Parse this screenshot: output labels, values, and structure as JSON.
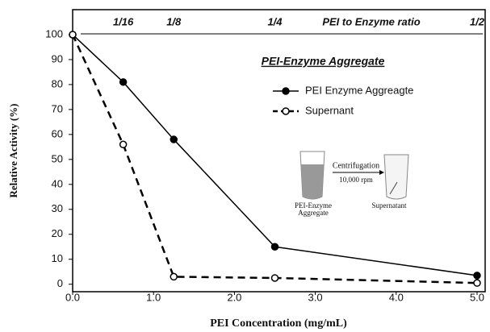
{
  "chart_data": {
    "type": "line",
    "x_label": "PEI Concentration (mg/mL)",
    "y_label": "Relative Activity (%)",
    "inset_title": "PEI-Enzyme Aggregate",
    "top_axis_title": "PEI to Enzyme ratio",
    "top_ticks": [
      {
        "value": 0.625,
        "label": "1/16"
      },
      {
        "value": 1.25,
        "label": "1/8"
      },
      {
        "value": 2.5,
        "label": "1/4"
      },
      {
        "value": 5.0,
        "label": "1/2"
      }
    ],
    "x": [
      0,
      0.625,
      1.25,
      2.5,
      5.0
    ],
    "series": [
      {
        "name": "PEI Enzyme Aggreagte",
        "color": "#000000",
        "marker": "filled",
        "dashed": false,
        "values": [
          100,
          81,
          58,
          15,
          3.5
        ]
      },
      {
        "name": "Supernant",
        "color": "#000000",
        "marker": "open",
        "dashed": true,
        "values": [
          100,
          56,
          3,
          2.5,
          0.5
        ]
      }
    ],
    "xlim": [
      0,
      5.1
    ],
    "ylim": [
      -3,
      110
    ],
    "xticks": [
      {
        "value": 0,
        "label": "0.0"
      },
      {
        "value": 1,
        "label": "1.0"
      },
      {
        "value": 2,
        "label": "2.0"
      },
      {
        "value": 3,
        "label": "3.0"
      },
      {
        "value": 4,
        "label": "4.0"
      },
      {
        "value": 5,
        "label": "5.0"
      }
    ],
    "yticks": [
      0,
      10,
      20,
      30,
      40,
      50,
      60,
      70,
      80,
      90,
      100
    ],
    "grid": false,
    "annotations": [
      "Centrifugation",
      "10,000 rpm",
      "PEI-Enzyme",
      "Aggregate",
      "Supernatant"
    ]
  }
}
